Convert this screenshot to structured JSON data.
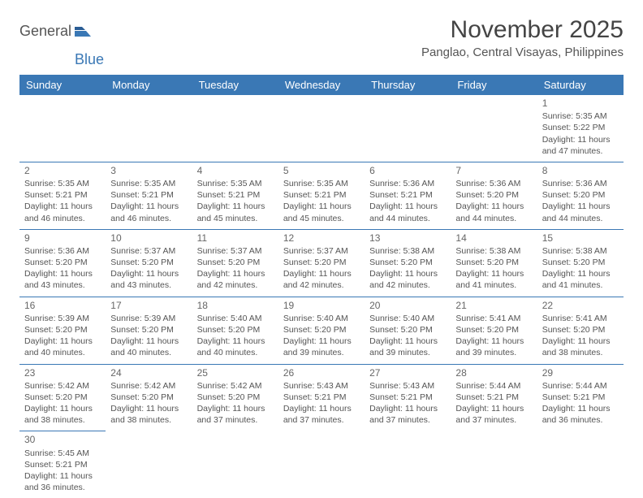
{
  "brand": {
    "general": "General",
    "blue": "Blue"
  },
  "title": "November 2025",
  "location": "Panglao, Central Visayas, Philippines",
  "colors": {
    "header_bg": "#3a78b5",
    "header_text": "#ffffff",
    "cell_border": "#3a78b5",
    "text": "#555555",
    "title_text": "#444444"
  },
  "day_headers": [
    "Sunday",
    "Monday",
    "Tuesday",
    "Wednesday",
    "Thursday",
    "Friday",
    "Saturday"
  ],
  "weeks": [
    [
      null,
      null,
      null,
      null,
      null,
      null,
      {
        "n": "1",
        "sr": "Sunrise: 5:35 AM",
        "ss": "Sunset: 5:22 PM",
        "dl": "Daylight: 11 hours and 47 minutes."
      }
    ],
    [
      {
        "n": "2",
        "sr": "Sunrise: 5:35 AM",
        "ss": "Sunset: 5:21 PM",
        "dl": "Daylight: 11 hours and 46 minutes."
      },
      {
        "n": "3",
        "sr": "Sunrise: 5:35 AM",
        "ss": "Sunset: 5:21 PM",
        "dl": "Daylight: 11 hours and 46 minutes."
      },
      {
        "n": "4",
        "sr": "Sunrise: 5:35 AM",
        "ss": "Sunset: 5:21 PM",
        "dl": "Daylight: 11 hours and 45 minutes."
      },
      {
        "n": "5",
        "sr": "Sunrise: 5:35 AM",
        "ss": "Sunset: 5:21 PM",
        "dl": "Daylight: 11 hours and 45 minutes."
      },
      {
        "n": "6",
        "sr": "Sunrise: 5:36 AM",
        "ss": "Sunset: 5:21 PM",
        "dl": "Daylight: 11 hours and 44 minutes."
      },
      {
        "n": "7",
        "sr": "Sunrise: 5:36 AM",
        "ss": "Sunset: 5:20 PM",
        "dl": "Daylight: 11 hours and 44 minutes."
      },
      {
        "n": "8",
        "sr": "Sunrise: 5:36 AM",
        "ss": "Sunset: 5:20 PM",
        "dl": "Daylight: 11 hours and 44 minutes."
      }
    ],
    [
      {
        "n": "9",
        "sr": "Sunrise: 5:36 AM",
        "ss": "Sunset: 5:20 PM",
        "dl": "Daylight: 11 hours and 43 minutes."
      },
      {
        "n": "10",
        "sr": "Sunrise: 5:37 AM",
        "ss": "Sunset: 5:20 PM",
        "dl": "Daylight: 11 hours and 43 minutes."
      },
      {
        "n": "11",
        "sr": "Sunrise: 5:37 AM",
        "ss": "Sunset: 5:20 PM",
        "dl": "Daylight: 11 hours and 42 minutes."
      },
      {
        "n": "12",
        "sr": "Sunrise: 5:37 AM",
        "ss": "Sunset: 5:20 PM",
        "dl": "Daylight: 11 hours and 42 minutes."
      },
      {
        "n": "13",
        "sr": "Sunrise: 5:38 AM",
        "ss": "Sunset: 5:20 PM",
        "dl": "Daylight: 11 hours and 42 minutes."
      },
      {
        "n": "14",
        "sr": "Sunrise: 5:38 AM",
        "ss": "Sunset: 5:20 PM",
        "dl": "Daylight: 11 hours and 41 minutes."
      },
      {
        "n": "15",
        "sr": "Sunrise: 5:38 AM",
        "ss": "Sunset: 5:20 PM",
        "dl": "Daylight: 11 hours and 41 minutes."
      }
    ],
    [
      {
        "n": "16",
        "sr": "Sunrise: 5:39 AM",
        "ss": "Sunset: 5:20 PM",
        "dl": "Daylight: 11 hours and 40 minutes."
      },
      {
        "n": "17",
        "sr": "Sunrise: 5:39 AM",
        "ss": "Sunset: 5:20 PM",
        "dl": "Daylight: 11 hours and 40 minutes."
      },
      {
        "n": "18",
        "sr": "Sunrise: 5:40 AM",
        "ss": "Sunset: 5:20 PM",
        "dl": "Daylight: 11 hours and 40 minutes."
      },
      {
        "n": "19",
        "sr": "Sunrise: 5:40 AM",
        "ss": "Sunset: 5:20 PM",
        "dl": "Daylight: 11 hours and 39 minutes."
      },
      {
        "n": "20",
        "sr": "Sunrise: 5:40 AM",
        "ss": "Sunset: 5:20 PM",
        "dl": "Daylight: 11 hours and 39 minutes."
      },
      {
        "n": "21",
        "sr": "Sunrise: 5:41 AM",
        "ss": "Sunset: 5:20 PM",
        "dl": "Daylight: 11 hours and 39 minutes."
      },
      {
        "n": "22",
        "sr": "Sunrise: 5:41 AM",
        "ss": "Sunset: 5:20 PM",
        "dl": "Daylight: 11 hours and 38 minutes."
      }
    ],
    [
      {
        "n": "23",
        "sr": "Sunrise: 5:42 AM",
        "ss": "Sunset: 5:20 PM",
        "dl": "Daylight: 11 hours and 38 minutes."
      },
      {
        "n": "24",
        "sr": "Sunrise: 5:42 AM",
        "ss": "Sunset: 5:20 PM",
        "dl": "Daylight: 11 hours and 38 minutes."
      },
      {
        "n": "25",
        "sr": "Sunrise: 5:42 AM",
        "ss": "Sunset: 5:20 PM",
        "dl": "Daylight: 11 hours and 37 minutes."
      },
      {
        "n": "26",
        "sr": "Sunrise: 5:43 AM",
        "ss": "Sunset: 5:21 PM",
        "dl": "Daylight: 11 hours and 37 minutes."
      },
      {
        "n": "27",
        "sr": "Sunrise: 5:43 AM",
        "ss": "Sunset: 5:21 PM",
        "dl": "Daylight: 11 hours and 37 minutes."
      },
      {
        "n": "28",
        "sr": "Sunrise: 5:44 AM",
        "ss": "Sunset: 5:21 PM",
        "dl": "Daylight: 11 hours and 37 minutes."
      },
      {
        "n": "29",
        "sr": "Sunrise: 5:44 AM",
        "ss": "Sunset: 5:21 PM",
        "dl": "Daylight: 11 hours and 36 minutes."
      }
    ],
    [
      {
        "n": "30",
        "sr": "Sunrise: 5:45 AM",
        "ss": "Sunset: 5:21 PM",
        "dl": "Daylight: 11 hours and 36 minutes."
      },
      null,
      null,
      null,
      null,
      null,
      null
    ]
  ]
}
